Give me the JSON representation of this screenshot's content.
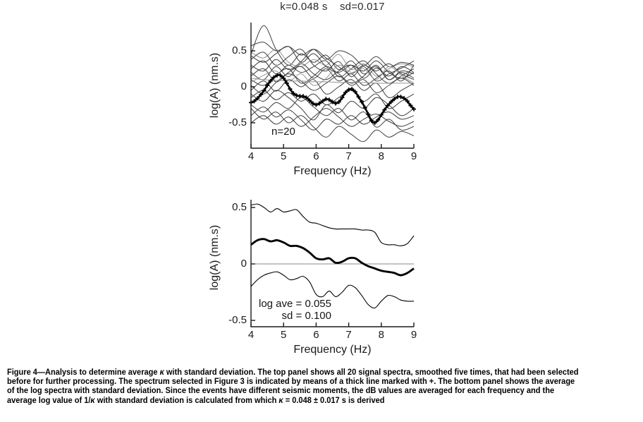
{
  "figure": {
    "top_panel": {
      "title": "k=0.048 s    sd=0.017",
      "ylabel": "log(A) (nm.s)",
      "xlabel": "Frequency (Hz)",
      "annotation_n": "n=20"
    },
    "bottom_panel": {
      "ylabel": "log(A) (nm.s)",
      "xlabel": "Frequency (Hz)",
      "annotation_log_ave": "log ave = 0.055",
      "annotation_sd": "sd = 0.100"
    }
  },
  "caption": {
    "lines": [
      "Figure 4—Analysis to determine average κ with standard deviation. The top panel shows all 20 signal spectra, smoothed five times, that had been selected",
      "before for further processing. The spectrum selected in Figure 3 is indicated by means of a thick line marked with +. The bottom panel shows the average",
      "of the log spectra with standard deviation. Since the events have different seismic moments, the dB values are averaged for each frequency and the",
      "average log value of 1/κ with standard deviation is calculated from which κ = 0.048 ± 0.017 s is derived"
    ]
  },
  "colors": {
    "line_thin": "#3f3f3f",
    "line_gray": "#959595",
    "line_thick": "#000000",
    "axis": "#1a1a1a",
    "zero_line": "#8a8a8a",
    "text": "#111111",
    "background": "#ffffff"
  },
  "chart_data": [
    {
      "type": "line",
      "panel": "top",
      "title": "k=0.048 s  sd=0.017",
      "xlabel": "Frequency (Hz)",
      "ylabel": "log(A) (nm.s)",
      "annotation": "n=20",
      "xlim": [
        4,
        9
      ],
      "ylim": [
        -0.85,
        0.9
      ],
      "xticks": [
        4,
        5,
        6,
        7,
        8,
        9
      ],
      "yticks": [
        -0.5,
        0,
        0.5
      ],
      "grid": false,
      "legend": "none",
      "background_x": [
        4.0,
        4.385,
        4.769,
        5.154,
        5.538,
        5.923,
        6.308,
        6.692,
        7.077,
        7.462,
        7.846,
        8.231,
        8.615,
        9.0
      ],
      "background_series": [
        {
          "color": "dark",
          "y": [
            0.57,
            0.62,
            0.5,
            0.56,
            0.44,
            0.52,
            0.38,
            0.5,
            0.44,
            0.3,
            0.42,
            0.28,
            0.34,
            0.3
          ]
        },
        {
          "color": "dark",
          "y": [
            0.45,
            0.85,
            0.52,
            0.3,
            0.46,
            0.34,
            0.44,
            0.24,
            0.36,
            0.18,
            0.28,
            0.1,
            0.22,
            0.18
          ]
        },
        {
          "color": "gray",
          "y": [
            0.48,
            0.4,
            0.52,
            0.34,
            0.28,
            0.38,
            0.3,
            0.45,
            0.24,
            0.32,
            0.15,
            0.25,
            0.32,
            0.28
          ]
        },
        {
          "color": "dark",
          "y": [
            0.43,
            0.34,
            0.46,
            0.56,
            0.34,
            0.46,
            0.28,
            0.2,
            0.3,
            0.22,
            0.36,
            0.2,
            0.12,
            0.2
          ]
        },
        {
          "color": "dark",
          "y": [
            0.38,
            0.48,
            0.3,
            0.42,
            0.52,
            0.3,
            0.22,
            0.35,
            0.14,
            0.28,
            0.08,
            0.18,
            0.26,
            0.36
          ]
        },
        {
          "color": "dark",
          "y": [
            0.3,
            0.22,
            0.38,
            0.24,
            0.35,
            0.52,
            0.4,
            0.28,
            0.18,
            0.3,
            0.22,
            0.32,
            0.18,
            0.1
          ]
        },
        {
          "color": "dark",
          "y": [
            0.25,
            0.36,
            0.18,
            0.3,
            0.2,
            0.28,
            0.36,
            0.14,
            0.25,
            0.36,
            0.18,
            0.05,
            0.15,
            0.25
          ]
        },
        {
          "color": "dark",
          "y": [
            0.2,
            0.1,
            0.28,
            0.14,
            0.32,
            0.18,
            0.1,
            0.22,
            0.3,
            0.12,
            0.26,
            0.15,
            0.28,
            0.2
          ]
        },
        {
          "color": "dark",
          "y": [
            0.15,
            0.25,
            0.07,
            0.2,
            0.28,
            0.12,
            0.25,
            0.08,
            0.18,
            0.02,
            0.12,
            0.22,
            0.08,
            0.3
          ]
        },
        {
          "color": "dark",
          "y": [
            0.1,
            0.02,
            0.16,
            0.25,
            0.05,
            0.15,
            0.28,
            0.18,
            0.05,
            0.15,
            0.3,
            0.1,
            0.2,
            0.12
          ]
        },
        {
          "color": "gray",
          "y": [
            0.06,
            0.16,
            0.22,
            0.08,
            0.18,
            0.02,
            0.12,
            0.3,
            0.2,
            0.25,
            0.1,
            0.28,
            0.16,
            0.05
          ]
        },
        {
          "color": "dark",
          "y": [
            0.02,
            -0.1,
            0.06,
            0.18,
            0.08,
            -0.05,
            0.05,
            0.15,
            0.02,
            0.1,
            -0.08,
            0.02,
            0.12,
            0.02
          ]
        },
        {
          "color": "dark",
          "y": [
            -0.05,
            0.08,
            -0.06,
            0.1,
            0.0,
            0.1,
            -0.1,
            0.0,
            0.1,
            -0.05,
            0.05,
            -0.15,
            -0.05,
            0.05
          ]
        },
        {
          "color": "dark",
          "y": [
            -0.1,
            -0.2,
            -0.05,
            -0.15,
            -0.3,
            -0.46,
            -0.25,
            -0.36,
            -0.2,
            -0.3,
            -0.15,
            -0.25,
            -0.4,
            -0.3
          ]
        },
        {
          "color": "dark",
          "y": [
            -0.15,
            -0.05,
            -0.18,
            -0.08,
            -0.2,
            -0.1,
            -0.25,
            -0.15,
            -0.05,
            -0.2,
            -0.1,
            -0.3,
            -0.2,
            -0.1
          ]
        },
        {
          "color": "dark",
          "y": [
            -0.25,
            -0.35,
            -0.22,
            -0.3,
            -0.15,
            -0.28,
            -0.4,
            -0.3,
            -0.46,
            -0.35,
            -0.56,
            -0.45,
            -0.6,
            -0.55
          ]
        },
        {
          "color": "dark",
          "y": [
            -0.3,
            -0.45,
            -0.35,
            -0.5,
            -0.4,
            -0.56,
            -0.7,
            -0.55,
            -0.66,
            -0.76,
            -0.6,
            -0.7,
            -0.62,
            -0.68
          ]
        },
        {
          "color": "dark",
          "y": [
            -0.4,
            -0.28,
            -0.42,
            -0.32,
            -0.46,
            -0.6,
            -0.45,
            -0.52,
            -0.4,
            -0.52,
            -0.42,
            -0.35,
            -0.45,
            -0.4
          ]
        },
        {
          "color": "dark",
          "y": [
            -0.5,
            -0.4,
            -0.52,
            -0.42,
            -0.55,
            -0.42,
            -0.3,
            -0.42,
            -0.55,
            -0.45,
            -0.38,
            -0.48,
            -0.55,
            -0.48
          ]
        },
        {
          "color": "gray",
          "y": [
            0.12,
            0.1,
            0.09,
            0.08,
            0.08,
            0.07,
            0.07,
            0.06,
            0.06,
            0.06,
            0.05,
            0.05,
            0.05,
            0.05
          ]
        }
      ],
      "highlight_series": {
        "name": "selected spectrum (Figure 3)",
        "marker": "+",
        "x": [
          4.0,
          4.1,
          4.2,
          4.3,
          4.4,
          4.5,
          4.6,
          4.7,
          4.8,
          4.9,
          5.0,
          5.1,
          5.2,
          5.3,
          5.4,
          5.5,
          5.6,
          5.7,
          5.8,
          5.9,
          6.0,
          6.1,
          6.2,
          6.3,
          6.4,
          6.5,
          6.6,
          6.7,
          6.8,
          6.9,
          7.0,
          7.1,
          7.2,
          7.3,
          7.4,
          7.5,
          7.6,
          7.7,
          7.8,
          7.9,
          8.0,
          8.1,
          8.2,
          8.3,
          8.4,
          8.5,
          8.6,
          8.7,
          8.8,
          8.9,
          9.0
        ],
        "y": [
          -0.22,
          -0.2,
          -0.16,
          -0.11,
          -0.05,
          0.02,
          0.08,
          0.13,
          0.16,
          0.16,
          0.12,
          0.05,
          -0.03,
          -0.09,
          -0.12,
          -0.13,
          -0.13,
          -0.15,
          -0.19,
          -0.23,
          -0.25,
          -0.23,
          -0.2,
          -0.17,
          -0.18,
          -0.21,
          -0.23,
          -0.21,
          -0.15,
          -0.08,
          -0.04,
          -0.03,
          -0.07,
          -0.14,
          -0.21,
          -0.29,
          -0.38,
          -0.47,
          -0.5,
          -0.46,
          -0.39,
          -0.32,
          -0.26,
          -0.21,
          -0.17,
          -0.14,
          -0.14,
          -0.16,
          -0.2,
          -0.26,
          -0.31
        ]
      }
    },
    {
      "type": "line",
      "panel": "bottom",
      "title": "",
      "xlabel": "Frequency (Hz)",
      "ylabel": "log(A) (nm.s)",
      "annotations": [
        "log ave = 0.055",
        "sd = 0.100"
      ],
      "xlim": [
        4,
        9
      ],
      "ylim": [
        -0.6,
        0.6
      ],
      "xticks": [
        4,
        5,
        6,
        7,
        8,
        9
      ],
      "yticks": [
        -0.5,
        0,
        0.5
      ],
      "grid": false,
      "legend": "none",
      "zero_line": true,
      "x": [
        4.0,
        4.2,
        4.4,
        4.6,
        4.8,
        5.0,
        5.2,
        5.4,
        5.6,
        5.8,
        6.0,
        6.2,
        6.4,
        6.6,
        6.8,
        7.0,
        7.2,
        7.4,
        7.6,
        7.8,
        8.0,
        8.2,
        8.4,
        8.6,
        8.8,
        9.0
      ],
      "series": [
        {
          "name": "mean + sd",
          "style": "thin",
          "y": [
            0.52,
            0.53,
            0.5,
            0.46,
            0.49,
            0.46,
            0.47,
            0.48,
            0.42,
            0.37,
            0.36,
            0.34,
            0.32,
            0.31,
            0.31,
            0.31,
            0.31,
            0.3,
            0.3,
            0.28,
            0.19,
            0.17,
            0.17,
            0.16,
            0.18,
            0.25
          ]
        },
        {
          "name": "mean",
          "style": "thick",
          "y": [
            0.17,
            0.21,
            0.22,
            0.2,
            0.21,
            0.19,
            0.16,
            0.16,
            0.14,
            0.1,
            0.05,
            0.04,
            0.05,
            0.01,
            0.02,
            0.05,
            0.05,
            0.01,
            -0.02,
            -0.04,
            -0.06,
            -0.07,
            -0.08,
            -0.1,
            -0.08,
            -0.04
          ]
        },
        {
          "name": "mean − sd",
          "style": "thin",
          "y": [
            -0.2,
            -0.14,
            -0.1,
            -0.08,
            -0.07,
            -0.1,
            -0.14,
            -0.13,
            -0.11,
            -0.16,
            -0.27,
            -0.29,
            -0.24,
            -0.29,
            -0.25,
            -0.19,
            -0.21,
            -0.28,
            -0.36,
            -0.39,
            -0.33,
            -0.28,
            -0.29,
            -0.32,
            -0.33,
            -0.33
          ]
        }
      ]
    }
  ]
}
